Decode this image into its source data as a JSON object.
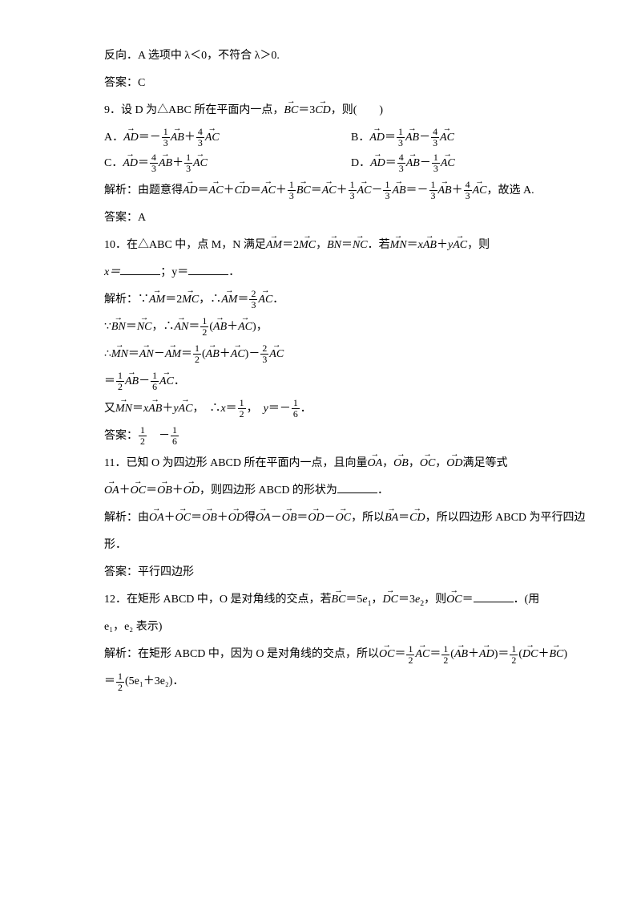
{
  "background_color": "#ffffff",
  "text_color": "#000000",
  "base_font_size": 14,
  "font_family_cn": "SimSun",
  "font_family_math": "Times New Roman",
  "lines": {
    "l1": "反向．A 选项中 λ＜0，不符合 λ＞0.",
    "l2": "答案：C",
    "q9_stem_a": "9．设 D 为△ABC 所在平面内一点，",
    "q9_stem_b": "，则(　　)",
    "q9_optA_pre": "A．",
    "q9_optB_pre": "B．",
    "q9_optC_pre": "C．",
    "q9_optD_pre": "D．",
    "q9_sol_a": "解析：由题意得",
    "q9_sol_b": "，故选 A.",
    "q9_ans": "答案：A",
    "q10_stem_a": "10．在△ABC 中，点 M，N 满足",
    "q10_stem_b": "．若",
    "q10_stem_c": "，则",
    "q10_xy": "x＝",
    "q10_xy2": "；y＝",
    "q10_sol1": "解析：∵",
    "q10_sol2": "，∴",
    "q10_sol3": "∵",
    "q10_sol4": "∴",
    "q10_you": "又",
    "q10_ans_pre": "答案：",
    "q11_stem_a": "11．已知 O 为四边形 ABCD 所在平面内一点，且向量",
    "q11_stem_b": "满足等式",
    "q11_stem_c": "，则四边形 ABCD 的形状为",
    "q11_sol_a": "解析：由",
    "q11_sol_b": "得",
    "q11_sol_c": "，所以",
    "q11_sol_d": "，所以四边形 ABCD 为平行四边",
    "q11_sol_e": "形．",
    "q11_ans": "答案：平行四边形",
    "q12_stem_a": "12．在矩形 ABCD 中，O 是对角线的交点，若",
    "q12_stem_b": "，则",
    "q12_stem_c": "．(用",
    "q12_stem_d": "e₁，e₂ 表示)",
    "q12_sol_a": "解析：在矩形 ABCD 中，因为 O 是对角线的交点，所以",
    "q12_last": "(5e₁＋3e₂)．",
    "dot": "．",
    "comma": "，",
    "eq": "＝",
    "plus": "＋",
    "minus": "－",
    "neg": "－",
    "lparen": "(",
    "rparen": ")",
    "three": "3",
    "five": "5",
    "two": "2",
    "xeq": "x",
    "yeq": "y",
    "AD": "AD",
    "AB": "AB",
    "AC": "AC",
    "BC": "BC",
    "CD": "CD",
    "AM": "AM",
    "MC": "MC",
    "BN": "BN",
    "NC": "NC",
    "MN": "MN",
    "AN": "AN",
    "OA": "OA",
    "OB": "OB",
    "OC": "OC",
    "OD": "OD",
    "BA": "BA",
    "DC": "DC",
    "e1": "e",
    "e2": "e",
    "sub1": "1",
    "sub2": "2",
    "f13n": "1",
    "f13d": "3",
    "f43n": "4",
    "f43d": "3",
    "f23n": "2",
    "f23d": "3",
    "f12n": "1",
    "f12d": "2",
    "f16n": "1",
    "f16d": "6"
  }
}
